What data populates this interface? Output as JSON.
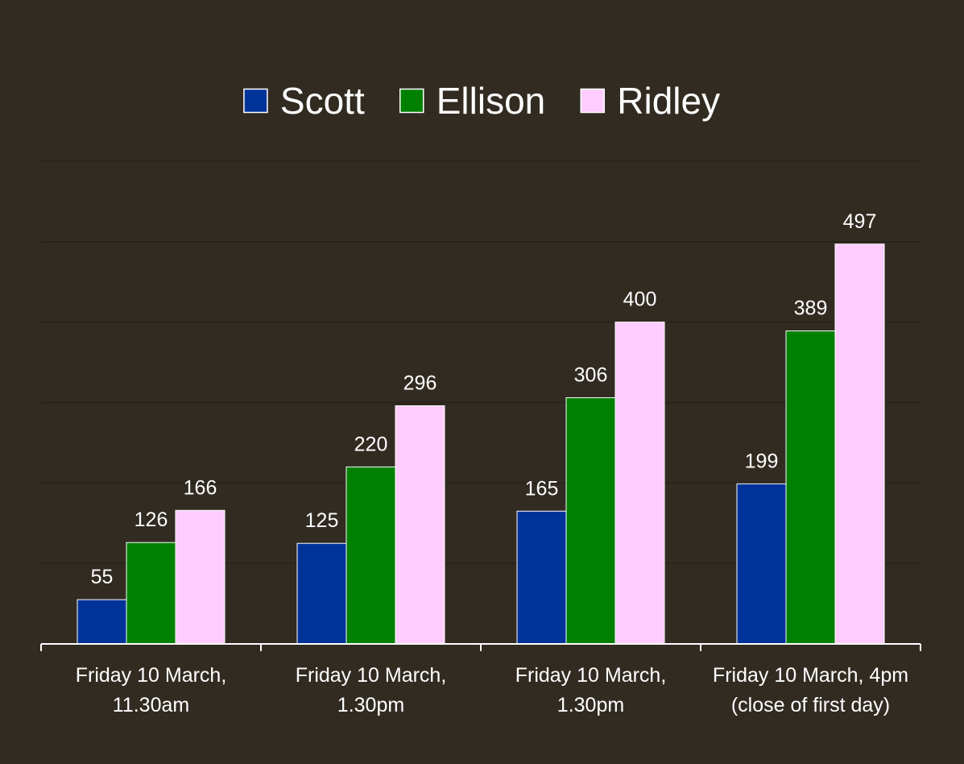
{
  "chart_data": {
    "type": "bar",
    "categories": [
      [
        "Friday 10 March,",
        "11.30am"
      ],
      [
        "Friday 10 March,",
        "1.30pm"
      ],
      [
        "Friday 10 March,",
        "1.30pm"
      ],
      [
        "Friday 10 March, 4pm",
        "(close of first day)"
      ]
    ],
    "series": [
      {
        "name": "Scott",
        "color": "#003399",
        "values": [
          55,
          125,
          165,
          199
        ]
      },
      {
        "name": "Ellison",
        "color": "#008000",
        "values": [
          126,
          220,
          306,
          389
        ]
      },
      {
        "name": "Ridley",
        "color": "#ffccff",
        "values": [
          166,
          296,
          400,
          497
        ]
      }
    ],
    "ylim": [
      0,
      600
    ],
    "grid": true,
    "legend_position": "top-center",
    "title": "",
    "xlabel": "",
    "ylabel": ""
  },
  "colors": {
    "background": "#312b22",
    "gridline": "#26221a",
    "axis": "#ffffff",
    "text": "#ffffff"
  }
}
